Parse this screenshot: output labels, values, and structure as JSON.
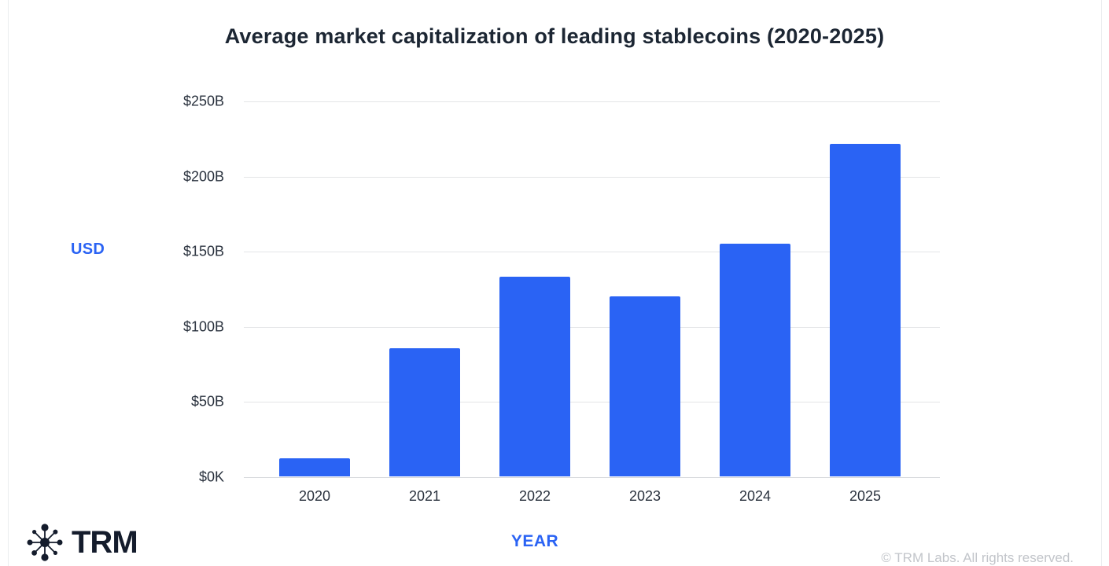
{
  "title": "Average market capitalization of leading stablecoins (2020-2025)",
  "y_axis": {
    "label": "USD"
  },
  "x_axis": {
    "label": "YEAR"
  },
  "footer": {
    "brand": "TRM",
    "logo_icon": "network-asterisk-icon",
    "copyright": "© TRM Labs. All rights reserved."
  },
  "colors": {
    "bar": "#2a63f4",
    "axis_accent": "#2a63f4",
    "title_text": "#1c2633",
    "tick_text": "#2a323e",
    "gridline": "#e4e5e7",
    "copyright_text": "#c2c5ca",
    "logo_dark": "#141c2c"
  },
  "chart_data": {
    "type": "bar",
    "title": "Average market capitalization of leading stablecoins (2020-2025)",
    "categories": [
      "2020",
      "2021",
      "2022",
      "2023",
      "2024",
      "2025"
    ],
    "values": [
      12,
      85,
      133,
      120,
      155,
      221
    ],
    "unit": "billions USD",
    "xlabel": "YEAR",
    "ylabel": "USD",
    "ylim": [
      0,
      250
    ],
    "y_tick_values": [
      250,
      200,
      150,
      100,
      50,
      0
    ],
    "y_tick_labels": [
      "$250B",
      "$200B",
      "$150B",
      "$100B",
      "$50B",
      "$0K"
    ],
    "grid": true,
    "legend": false,
    "bar_color": "#2a63f4"
  }
}
